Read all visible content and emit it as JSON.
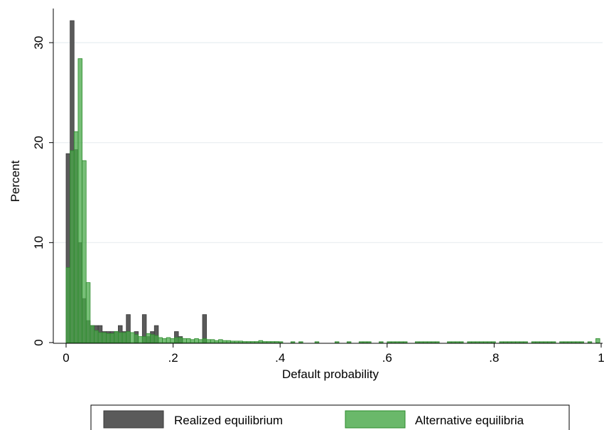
{
  "chart_data": {
    "type": "bar",
    "xlabel": "Default probability",
    "ylabel": "Percent",
    "xlim": [
      0,
      1
    ],
    "ylim": [
      0,
      32
    ],
    "bin_width": 0.0075,
    "x_ticks": [
      {
        "value": 0,
        "label": "0"
      },
      {
        "value": 0.2,
        "label": ".2"
      },
      {
        "value": 0.4,
        "label": ".4"
      },
      {
        "value": 0.6,
        "label": ".6"
      },
      {
        "value": 0.8,
        "label": ".8"
      },
      {
        "value": 1,
        "label": "1"
      }
    ],
    "y_ticks": [
      {
        "value": 0,
        "label": "0"
      },
      {
        "value": 10,
        "label": "10"
      },
      {
        "value": 20,
        "label": "20"
      },
      {
        "value": 30,
        "label": "30"
      }
    ],
    "grid": true,
    "legend_position": "bottom",
    "series": [
      {
        "name": "Realized equilibrium",
        "color": "#5a5a5a",
        "points": [
          [
            0.0,
            18.9
          ],
          [
            0.0075,
            32.2
          ],
          [
            0.015,
            19.3
          ],
          [
            0.0225,
            10.0
          ],
          [
            0.03,
            4.4
          ],
          [
            0.0375,
            2.2
          ],
          [
            0.045,
            1.7
          ],
          [
            0.0525,
            1.7
          ],
          [
            0.06,
            1.7
          ],
          [
            0.0675,
            1.1
          ],
          [
            0.075,
            1.1
          ],
          [
            0.0825,
            1.1
          ],
          [
            0.09,
            1.1
          ],
          [
            0.0975,
            1.7
          ],
          [
            0.105,
            1.1
          ],
          [
            0.1125,
            2.8
          ],
          [
            0.1275,
            1.1
          ],
          [
            0.1425,
            2.8
          ],
          [
            0.15,
            0.6
          ],
          [
            0.1575,
            1.1
          ],
          [
            0.165,
            1.7
          ],
          [
            0.2025,
            1.1
          ],
          [
            0.21,
            0.6
          ],
          [
            0.255,
            2.8
          ]
        ]
      },
      {
        "name": "Alternative equilibria",
        "color": "#6ab86a",
        "points": [
          [
            0.0,
            7.5
          ],
          [
            0.0075,
            19.2
          ],
          [
            0.015,
            21.1
          ],
          [
            0.0225,
            28.4
          ],
          [
            0.03,
            18.2
          ],
          [
            0.0375,
            6.0
          ],
          [
            0.045,
            1.7
          ],
          [
            0.0525,
            1.2
          ],
          [
            0.06,
            1.0
          ],
          [
            0.0675,
            1.0
          ],
          [
            0.075,
            0.9
          ],
          [
            0.0825,
            0.9
          ],
          [
            0.09,
            1.1
          ],
          [
            0.0975,
            1.0
          ],
          [
            0.105,
            1.0
          ],
          [
            0.1125,
            1.1
          ],
          [
            0.12,
            1.0
          ],
          [
            0.1275,
            0.8
          ],
          [
            0.135,
            0.6
          ],
          [
            0.1425,
            0.6
          ],
          [
            0.15,
            0.9
          ],
          [
            0.1575,
            0.8
          ],
          [
            0.165,
            0.7
          ],
          [
            0.1725,
            0.5
          ],
          [
            0.18,
            0.4
          ],
          [
            0.1875,
            0.5
          ],
          [
            0.195,
            0.4
          ],
          [
            0.2025,
            0.5
          ],
          [
            0.21,
            0.5
          ],
          [
            0.2175,
            0.4
          ],
          [
            0.225,
            0.4
          ],
          [
            0.2325,
            0.3
          ],
          [
            0.24,
            0.4
          ],
          [
            0.2475,
            0.3
          ],
          [
            0.255,
            0.4
          ],
          [
            0.2625,
            0.3
          ],
          [
            0.27,
            0.3
          ],
          [
            0.2775,
            0.2
          ],
          [
            0.285,
            0.3
          ],
          [
            0.2925,
            0.2
          ],
          [
            0.3,
            0.2
          ],
          [
            0.3075,
            0.15
          ],
          [
            0.315,
            0.15
          ],
          [
            0.3225,
            0.15
          ],
          [
            0.33,
            0.1
          ],
          [
            0.3375,
            0.1
          ],
          [
            0.345,
            0.1
          ],
          [
            0.3525,
            0.1
          ],
          [
            0.36,
            0.2
          ],
          [
            0.3675,
            0.1
          ],
          [
            0.375,
            0.1
          ],
          [
            0.3825,
            0.1
          ],
          [
            0.39,
            0.1
          ],
          [
            0.3975,
            0.05
          ],
          [
            0.42,
            0.05
          ],
          [
            0.435,
            0.05
          ],
          [
            0.465,
            0.05
          ],
          [
            0.5025,
            0.05
          ],
          [
            0.525,
            0.05
          ],
          [
            0.5475,
            0.05
          ],
          [
            0.555,
            0.05
          ],
          [
            0.5625,
            0.05
          ],
          [
            0.585,
            0.05
          ],
          [
            0.6,
            0.05
          ],
          [
            0.6075,
            0.05
          ],
          [
            0.615,
            0.05
          ],
          [
            0.6225,
            0.05
          ],
          [
            0.63,
            0.05
          ],
          [
            0.6525,
            0.05
          ],
          [
            0.66,
            0.05
          ],
          [
            0.6675,
            0.05
          ],
          [
            0.675,
            0.05
          ],
          [
            0.6825,
            0.05
          ],
          [
            0.69,
            0.05
          ],
          [
            0.7125,
            0.05
          ],
          [
            0.72,
            0.05
          ],
          [
            0.7275,
            0.05
          ],
          [
            0.735,
            0.05
          ],
          [
            0.75,
            0.05
          ],
          [
            0.7575,
            0.05
          ],
          [
            0.765,
            0.05
          ],
          [
            0.7725,
            0.05
          ],
          [
            0.78,
            0.05
          ],
          [
            0.7875,
            0.05
          ],
          [
            0.795,
            0.05
          ],
          [
            0.81,
            0.05
          ],
          [
            0.8175,
            0.05
          ],
          [
            0.825,
            0.05
          ],
          [
            0.8325,
            0.05
          ],
          [
            0.84,
            0.05
          ],
          [
            0.8475,
            0.05
          ],
          [
            0.855,
            0.05
          ],
          [
            0.87,
            0.05
          ],
          [
            0.8775,
            0.05
          ],
          [
            0.885,
            0.05
          ],
          [
            0.8925,
            0.05
          ],
          [
            0.9,
            0.05
          ],
          [
            0.9075,
            0.05
          ],
          [
            0.9225,
            0.05
          ],
          [
            0.93,
            0.05
          ],
          [
            0.9375,
            0.05
          ],
          [
            0.945,
            0.05
          ],
          [
            0.9525,
            0.05
          ],
          [
            0.96,
            0.05
          ],
          [
            0.975,
            0.05
          ],
          [
            0.99,
            0.4
          ]
        ]
      }
    ]
  }
}
